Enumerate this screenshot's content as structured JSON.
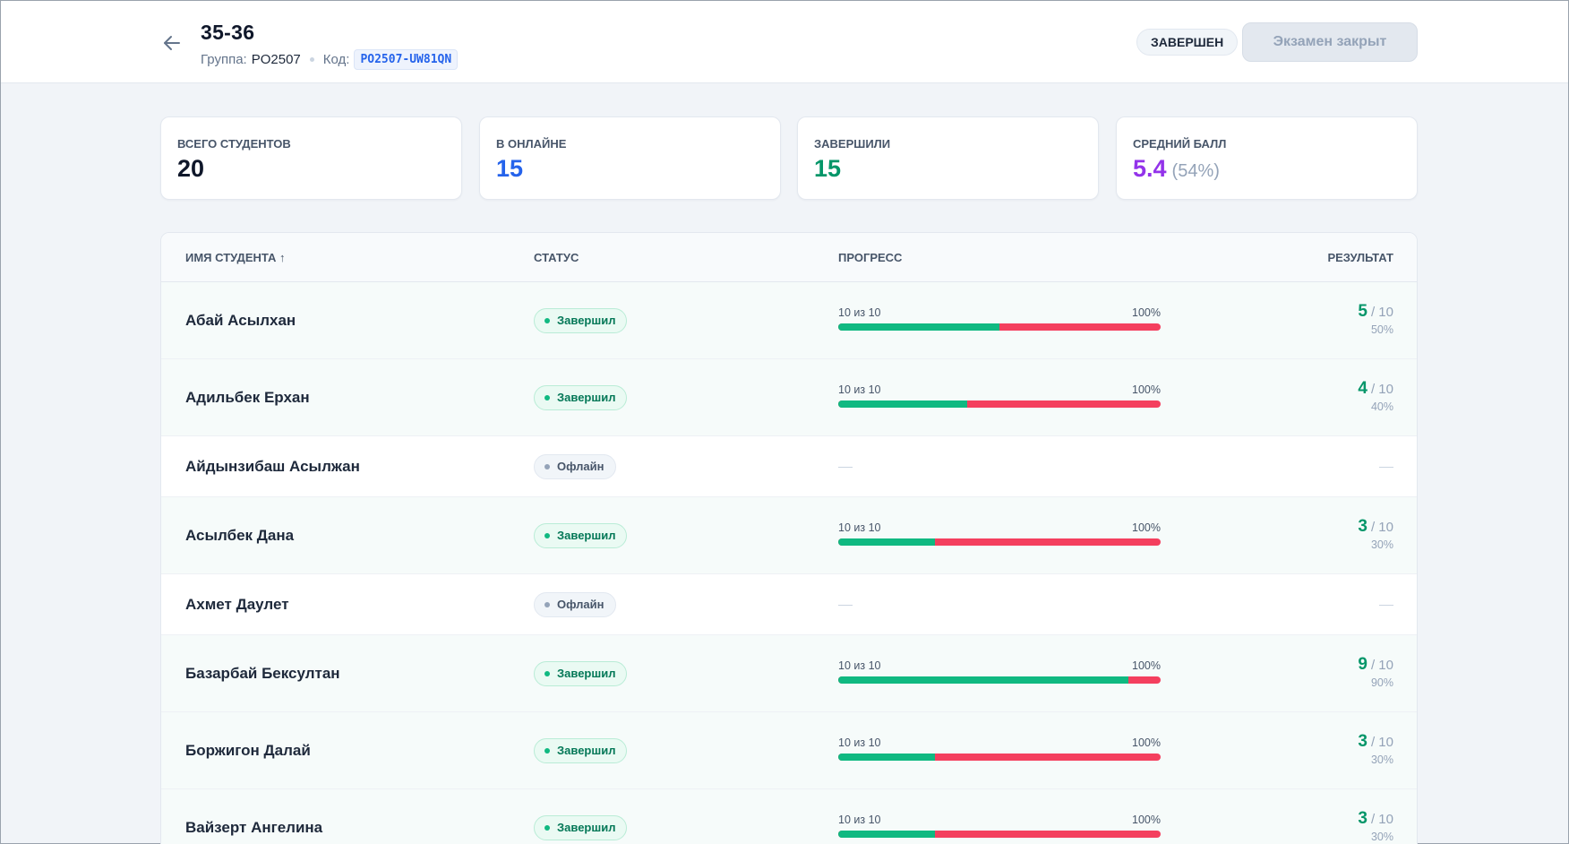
{
  "header": {
    "title": "35-36",
    "group_label": "Группа:",
    "group_value": "PO2507",
    "code_label": "Код:",
    "code_value": "PO2507-UW81QN",
    "status_badge": "ЗАВЕРШЕН",
    "exam_button": "Экзамен закрыт"
  },
  "stats": [
    {
      "label": "ВСЕГО СТУДЕНТОВ",
      "value": "20",
      "color": "#0f172a"
    },
    {
      "label": "В ОНЛАЙНЕ",
      "value": "15",
      "color": "#2563eb"
    },
    {
      "label": "ЗАВЕРШИЛИ",
      "value": "15",
      "color": "#059669"
    },
    {
      "label": "СРЕДНИЙ БАЛЛ",
      "value": "5.4",
      "sub": "(54%)",
      "color": "#9333ea"
    }
  ],
  "table": {
    "columns": {
      "name": "ИМЯ СТУДЕНТА ↑",
      "status": "СТАТУС",
      "progress": "ПРОГРЕСС",
      "result": "РЕЗУЛЬТАТ"
    },
    "rows": [
      {
        "name": "Абай Асылхан",
        "status": "Завершил",
        "state": "done",
        "progress": "10 из 10",
        "progress_pct": "100%",
        "score": "5",
        "max": "/ 10",
        "score_pct": "50%",
        "correct_ratio": 0.5
      },
      {
        "name": "Адильбек Ерхан",
        "status": "Завершил",
        "state": "done",
        "progress": "10 из 10",
        "progress_pct": "100%",
        "score": "4",
        "max": "/ 10",
        "score_pct": "40%",
        "correct_ratio": 0.4
      },
      {
        "name": "Айдынзибаш Асылжан",
        "status": "Офлайн",
        "state": "off"
      },
      {
        "name": "Асылбек Дана",
        "status": "Завершил",
        "state": "done",
        "progress": "10 из 10",
        "progress_pct": "100%",
        "score": "3",
        "max": "/ 10",
        "score_pct": "30%",
        "correct_ratio": 0.3
      },
      {
        "name": "Ахмет Даулет",
        "status": "Офлайн",
        "state": "off"
      },
      {
        "name": "Базарбай Бексултан",
        "status": "Завершил",
        "state": "done",
        "progress": "10 из 10",
        "progress_pct": "100%",
        "score": "9",
        "max": "/ 10",
        "score_pct": "90%",
        "correct_ratio": 0.9
      },
      {
        "name": "Боржигон Далай",
        "status": "Завершил",
        "state": "done",
        "progress": "10 из 10",
        "progress_pct": "100%",
        "score": "3",
        "max": "/ 10",
        "score_pct": "30%",
        "correct_ratio": 0.3
      },
      {
        "name": "Вайзерт Ангелина",
        "status": "Завершил",
        "state": "done",
        "progress": "10 из 10",
        "progress_pct": "100%",
        "score": "3",
        "max": "/ 10",
        "score_pct": "30%",
        "correct_ratio": 0.3
      }
    ]
  },
  "icons": {
    "back": "arrow-left-icon"
  },
  "colors": {
    "correct": "#10b981",
    "wrong": "#f43f5e",
    "accent": "#2563eb"
  }
}
